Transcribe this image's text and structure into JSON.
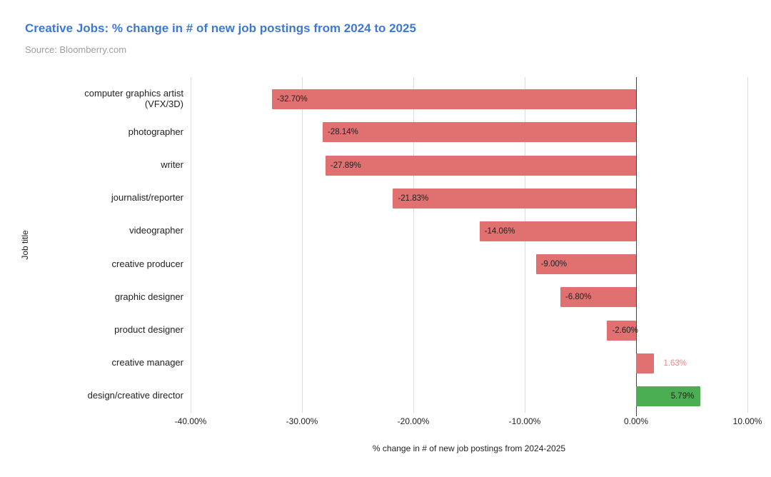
{
  "chart": {
    "title": "Creative Jobs: % change in # of new job postings from 2024 to 2025",
    "source": "Source: Bloomberry.com",
    "x_axis_title": "% change in # of new job postings from 2024-2025",
    "y_axis_title": "Job title"
  },
  "chart_data": {
    "type": "bar",
    "orientation": "horizontal",
    "title": "Creative Jobs: % change in # of new job postings from 2024 to 2025",
    "subtitle": "Source: Bloomberry.com",
    "xlabel": "% change in # of new job postings from 2024-2025",
    "ylabel": "Job title",
    "xlim": [
      -40,
      10
    ],
    "grid": "vertical-gridlines-on",
    "legend": "none",
    "categories": [
      "computer graphics artist (VFX/3D)",
      "photographer",
      "writer",
      "journalist/reporter",
      "videographer",
      "creative producer",
      "graphic designer",
      "product designer",
      "creative manager",
      "design/creative director"
    ],
    "values": [
      -32.7,
      -28.14,
      -27.89,
      -21.83,
      -14.06,
      -9.0,
      -6.8,
      -2.6,
      1.63,
      5.79
    ],
    "colors": {
      "negative_bar": "#e17070",
      "positive_bar_red": "#e17070",
      "positive_bar_green": "#4bae52",
      "gridline": "#dadce0",
      "zero_line": "#424242",
      "title": "#3c78d8",
      "source_text": "#9e9e9e"
    },
    "x_ticks": [
      {
        "value": -40,
        "label": "-40.00%"
      },
      {
        "value": -30,
        "label": "-30.00%"
      },
      {
        "value": -20,
        "label": "-20.00%"
      },
      {
        "value": -10,
        "label": "-10.00%"
      },
      {
        "value": 0,
        "label": "0.00%"
      },
      {
        "value": 10,
        "label": "10.00%"
      }
    ],
    "bars": [
      {
        "category": "computer graphics artist\n(VFX/3D)",
        "value": -32.7,
        "label": "-32.70%",
        "color": "#e17070",
        "label_placement": "inside-start",
        "label_color": "#222222"
      },
      {
        "category": "photographer",
        "value": -28.14,
        "label": "-28.14%",
        "color": "#e17070",
        "label_placement": "inside-start",
        "label_color": "#222222"
      },
      {
        "category": "writer",
        "value": -27.89,
        "label": "-27.89%",
        "color": "#e17070",
        "label_placement": "inside-start",
        "label_color": "#222222"
      },
      {
        "category": "journalist/reporter",
        "value": -21.83,
        "label": "-21.83%",
        "color": "#e17070",
        "label_placement": "inside-start",
        "label_color": "#222222"
      },
      {
        "category": "videographer",
        "value": -14.06,
        "label": "-14.06%",
        "color": "#e17070",
        "label_placement": "inside-start",
        "label_color": "#222222"
      },
      {
        "category": "creative producer",
        "value": -9.0,
        "label": "-9.00%",
        "color": "#e17070",
        "label_placement": "inside-start",
        "label_color": "#222222"
      },
      {
        "category": "graphic designer",
        "value": -6.8,
        "label": "-6.80%",
        "color": "#e17070",
        "label_placement": "inside-start",
        "label_color": "#222222"
      },
      {
        "category": "product designer",
        "value": -2.6,
        "label": "-2.60%",
        "color": "#e17070",
        "label_placement": "inside-start",
        "label_color": "#222222"
      },
      {
        "category": "creative manager",
        "value": 1.63,
        "label": "1.63%",
        "color": "#e17070",
        "label_placement": "outside-end",
        "label_color": "#e88a8a"
      },
      {
        "category": "design/creative director",
        "value": 5.79,
        "label": "5.79%",
        "color": "#4bae52",
        "label_placement": "inside-end",
        "label_color": "#222222"
      }
    ]
  }
}
